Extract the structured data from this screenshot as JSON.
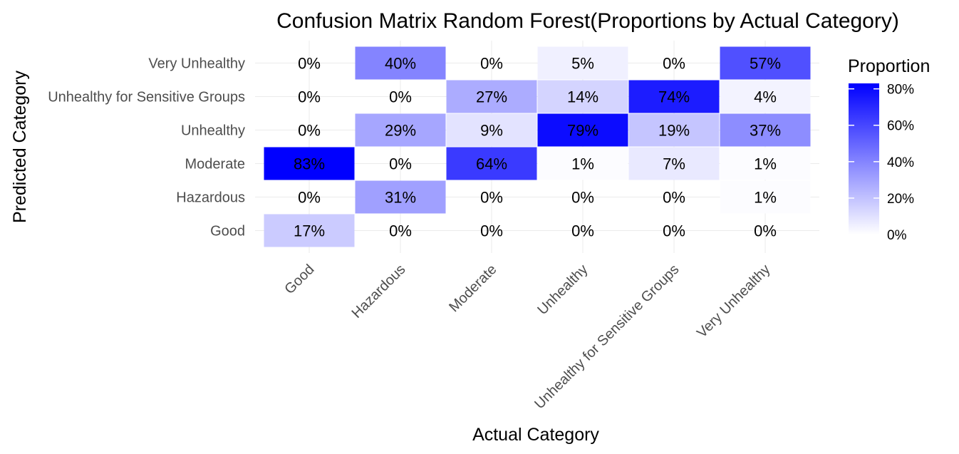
{
  "chart_data": {
    "type": "heatmap",
    "title": "Confusion Matrix Random Forest(Proportions by Actual Category)",
    "xlabel": "Actual Category",
    "ylabel": "Predicted Category",
    "x_categories": [
      "Good",
      "Hazardous",
      "Moderate",
      "Unhealthy",
      "Unhealthy for Sensitive Groups",
      "Very Unhealthy"
    ],
    "y_categories": [
      "Very Unhealthy",
      "Unhealthy for Sensitive Groups",
      "Unhealthy",
      "Moderate",
      "Hazardous",
      "Good"
    ],
    "values": [
      [
        0.0,
        0.4,
        0.0,
        0.05,
        0.0,
        0.57
      ],
      [
        0.0,
        0.0,
        0.27,
        0.14,
        0.74,
        0.04
      ],
      [
        0.0,
        0.29,
        0.09,
        0.79,
        0.19,
        0.37
      ],
      [
        0.83,
        0.0,
        0.64,
        0.01,
        0.07,
        0.01
      ],
      [
        0.0,
        0.31,
        0.0,
        0.0,
        0.0,
        0.01
      ],
      [
        0.17,
        0.0,
        0.0,
        0.0,
        0.0,
        0.0
      ]
    ],
    "labels": [
      [
        "0%",
        "40%",
        "0%",
        "5%",
        "0%",
        "57%"
      ],
      [
        "0%",
        "0%",
        "27%",
        "14%",
        "74%",
        "4%"
      ],
      [
        "0%",
        "29%",
        "9%",
        "79%",
        "19%",
        "37%"
      ],
      [
        "83%",
        "0%",
        "64%",
        "1%",
        "7%",
        "1%"
      ],
      [
        "0%",
        "31%",
        "0%",
        "0%",
        "0%",
        "1%"
      ],
      [
        "17%",
        "0%",
        "0%",
        "0%",
        "0%",
        "0%"
      ]
    ],
    "legend": {
      "title": "Proportion",
      "ticks": [
        0,
        0.2,
        0.4,
        0.6,
        0.8
      ],
      "tick_labels": [
        "0%",
        "20%",
        "40%",
        "60%",
        "80%"
      ],
      "placement": "right"
    },
    "color_low": "#ffffff",
    "color_high": "#0000ff",
    "value_range": [
      0,
      0.83
    ]
  }
}
